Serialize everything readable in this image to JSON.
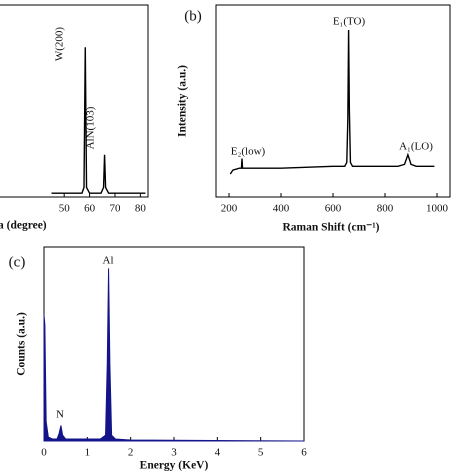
{
  "chart_data": [
    {
      "type": "line",
      "xlabel": "a (degree)",
      "color": "#000000",
      "x": [
        45,
        55,
        57,
        57.8,
        58.3,
        58.8,
        60,
        64.5,
        65.5,
        65.9,
        66.3,
        67.5,
        75,
        82
      ],
      "values": [
        2,
        2,
        2,
        5,
        78,
        5,
        2,
        2,
        5,
        22,
        5,
        2,
        2,
        2
      ],
      "xlim": [
        20,
        83
      ],
      "xticks": [
        50,
        60,
        70,
        80
      ],
      "ylim": [
        0,
        100
      ],
      "annotations": [
        "W(200)",
        "AlN(103)"
      ]
    },
    {
      "type": "line",
      "panel_label": "(b)",
      "xlabel": "Raman Shift (cm⁻¹)",
      "ylabel": "Intensity (a.u.)",
      "color": "#000000",
      "x": [
        205,
        215,
        240,
        248,
        250,
        252,
        260,
        400,
        600,
        645,
        653,
        657,
        660,
        663,
        667,
        675,
        700,
        850,
        875,
        883,
        888,
        893,
        900,
        920,
        990
      ],
      "values": [
        12,
        14,
        15,
        15,
        20,
        15,
        15,
        15,
        16,
        16,
        18,
        40,
        87,
        45,
        18,
        16,
        16,
        16,
        17,
        20,
        22,
        20,
        17,
        16,
        16
      ],
      "xlim": [
        150,
        1050
      ],
      "xticks": [
        200,
        400,
        600,
        800,
        1000
      ],
      "ylim": [
        0,
        100
      ],
      "annotations": [
        "E₂(low)",
        "E₁(TO)",
        "A₁(LO)"
      ]
    },
    {
      "type": "area",
      "panel_label": "(c)",
      "xlabel": "Energy (KeV)",
      "ylabel": "Counts (a.u.)",
      "color": "#14148a",
      "x": [
        0,
        0.02,
        0.05,
        0.1,
        0.2,
        0.3,
        0.35,
        0.39,
        0.43,
        0.5,
        1.3,
        1.42,
        1.46,
        1.49,
        1.52,
        1.56,
        1.65,
        2,
        6
      ],
      "values": [
        65,
        60,
        10,
        2,
        1,
        1,
        4,
        8,
        3,
        1,
        1,
        3,
        40,
        89,
        40,
        3,
        1,
        0.5,
        0
      ],
      "xlim": [
        0,
        6
      ],
      "xticks": [
        0,
        1,
        2,
        3,
        4,
        5,
        6
      ],
      "ylim": [
        0,
        100
      ],
      "annotations": [
        "Al",
        "N"
      ]
    }
  ]
}
